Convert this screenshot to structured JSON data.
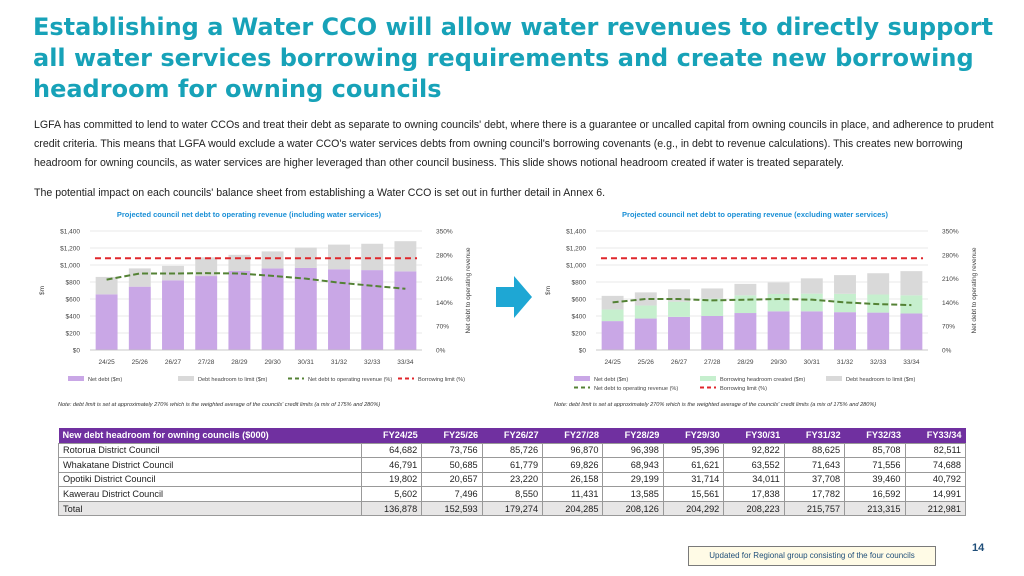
{
  "title": "Establishing a Water CCO will allow water revenues to directly support all water services borrowing requirements and create new borrowing headroom for owning councils",
  "paragraph1": "LGFA has committed to lend to water CCOs and treat their debt as separate to owning councils' debt, where there is a guarantee or uncalled capital from owning councils in place, and adherence to prudent credit criteria. This means that LGFA would exclude a water CCO's water services debts from owning council's borrowing covenants (e.g., in debt to revenue calculations). This creates new borrowing headroom for owning councils, as water services are higher leveraged than other council business. This slide shows notional headroom created if water is treated separately.",
  "paragraph2": "The potential impact on each councils' balance sheet from establishing a Water CCO is set out in further detail in Annex 6.",
  "arrow_icon": "right-arrow-icon",
  "chart_data": [
    {
      "type": "bar",
      "stacked": true,
      "title": "Projected council net debt to operating revenue (including water services)",
      "categories": [
        "24/25",
        "25/26",
        "26/27",
        "27/28",
        "28/29",
        "29/30",
        "30/31",
        "31/32",
        "32/33",
        "33/34"
      ],
      "ylabel": "$m",
      "y2label": "Net debt to operating revenue",
      "ylim": [
        0,
        1400
      ],
      "y2lim": [
        0,
        350
      ],
      "yticks": [
        "$0",
        "$200",
        "$400",
        "$600",
        "$800",
        "$1,000",
        "$1,200",
        "$1,400"
      ],
      "y2ticks": [
        "0%",
        "70%",
        "140%",
        "210%",
        "280%",
        "350%"
      ],
      "series": [
        {
          "name": "Net debt ($m)",
          "kind": "bar",
          "color": "#c9a7e6",
          "values": [
            655,
            745,
            820,
            870,
            930,
            960,
            965,
            950,
            940,
            925
          ]
        },
        {
          "name": "Debt headroom to limit ($m)",
          "kind": "bar",
          "color": "#d9d9d9",
          "values": [
            205,
            215,
            170,
            220,
            190,
            200,
            240,
            290,
            310,
            355
          ]
        },
        {
          "name": "Net debt to operating revenue (%)",
          "kind": "line",
          "style": "dash",
          "color": "#548235",
          "axis": "y2",
          "values": [
            207,
            225,
            225,
            226,
            225,
            218,
            210,
            198,
            189,
            180
          ]
        },
        {
          "name": "Borrowing limit (%)",
          "kind": "line",
          "style": "dash",
          "color": "#e0262b",
          "axis": "y2",
          "values": [
            270,
            270,
            270,
            270,
            270,
            270,
            270,
            270,
            270,
            270
          ]
        }
      ],
      "note": "Note: debt limit is set at approximately 270% which is the weighted average of the councils' credit limits (a mix of 175% and 280%)"
    },
    {
      "type": "bar",
      "stacked": true,
      "title": "Projected council net debt to operating revenue (excluding water services)",
      "categories": [
        "24/25",
        "25/26",
        "26/27",
        "27/28",
        "28/29",
        "29/30",
        "30/31",
        "31/32",
        "32/33",
        "33/34"
      ],
      "ylabel": "$m",
      "y2label": "Net debt to operating revenue",
      "ylim": [
        0,
        1400
      ],
      "y2lim": [
        0,
        350
      ],
      "yticks": [
        "$0",
        "$200",
        "$400",
        "$600",
        "$800",
        "$1,000",
        "$1,200",
        "$1,400"
      ],
      "y2ticks": [
        "0%",
        "70%",
        "140%",
        "210%",
        "280%",
        "350%"
      ],
      "series": [
        {
          "name": "Net debt ($m)",
          "kind": "bar",
          "color": "#c9a7e6",
          "values": [
            340,
            370,
            390,
            400,
            435,
            455,
            455,
            445,
            440,
            430
          ]
        },
        {
          "name": "Borrowing headroom created ($m)",
          "kind": "bar",
          "color": "#c6efce",
          "values": [
            137,
            153,
            179,
            204,
            208,
            204,
            208,
            216,
            213,
            213
          ]
        },
        {
          "name": "Debt headroom to limit ($m)",
          "kind": "bar",
          "color": "#d9d9d9",
          "values": [
            160,
            155,
            145,
            120,
            135,
            135,
            180,
            220,
            250,
            285
          ]
        },
        {
          "name": "Net debt to operating revenue (%)",
          "kind": "line",
          "style": "dash",
          "color": "#548235",
          "axis": "y2",
          "values": [
            140,
            150,
            150,
            146,
            148,
            150,
            148,
            140,
            135,
            132
          ]
        },
        {
          "name": "Borrowing limit (%)",
          "kind": "line",
          "style": "dash",
          "color": "#e0262b",
          "axis": "y2",
          "values": [
            270,
            270,
            270,
            270,
            270,
            270,
            270,
            270,
            270,
            270
          ]
        }
      ],
      "note": "Note: debt limit is set at approximately 270% which is the weighted average of the councils' credit limits (a mix of 175% and 280%)"
    }
  ],
  "table": {
    "headers": [
      "New debt headroom for owning councils ($000)",
      "FY24/25",
      "FY25/26",
      "FY26/27",
      "FY27/28",
      "FY28/29",
      "FY29/30",
      "FY30/31",
      "FY31/32",
      "FY32/33",
      "FY33/34"
    ],
    "rows": [
      [
        "Rotorua District Council",
        "64,682",
        "73,756",
        "85,726",
        "96,870",
        "96,398",
        "95,396",
        "92,822",
        "88,625",
        "85,708",
        "82,511"
      ],
      [
        "Whakatane District Council",
        "46,791",
        "50,685",
        "61,779",
        "69,826",
        "68,943",
        "61,621",
        "63,552",
        "71,643",
        "71,556",
        "74,688"
      ],
      [
        "Opotiki District Council",
        "19,802",
        "20,657",
        "23,220",
        "26,158",
        "29,199",
        "31,714",
        "34,011",
        "37,708",
        "39,460",
        "40,792"
      ],
      [
        "Kawerau District Council",
        "5,602",
        "7,496",
        "8,550",
        "11,431",
        "13,585",
        "15,561",
        "17,838",
        "17,782",
        "16,592",
        "14,991"
      ],
      [
        "Total",
        "136,878",
        "152,593",
        "179,274",
        "204,285",
        "208,126",
        "204,292",
        "208,223",
        "215,757",
        "213,315",
        "212,981"
      ]
    ]
  },
  "page_number": "14",
  "badge_text": "Updated for Regional group consisting of the four councils"
}
